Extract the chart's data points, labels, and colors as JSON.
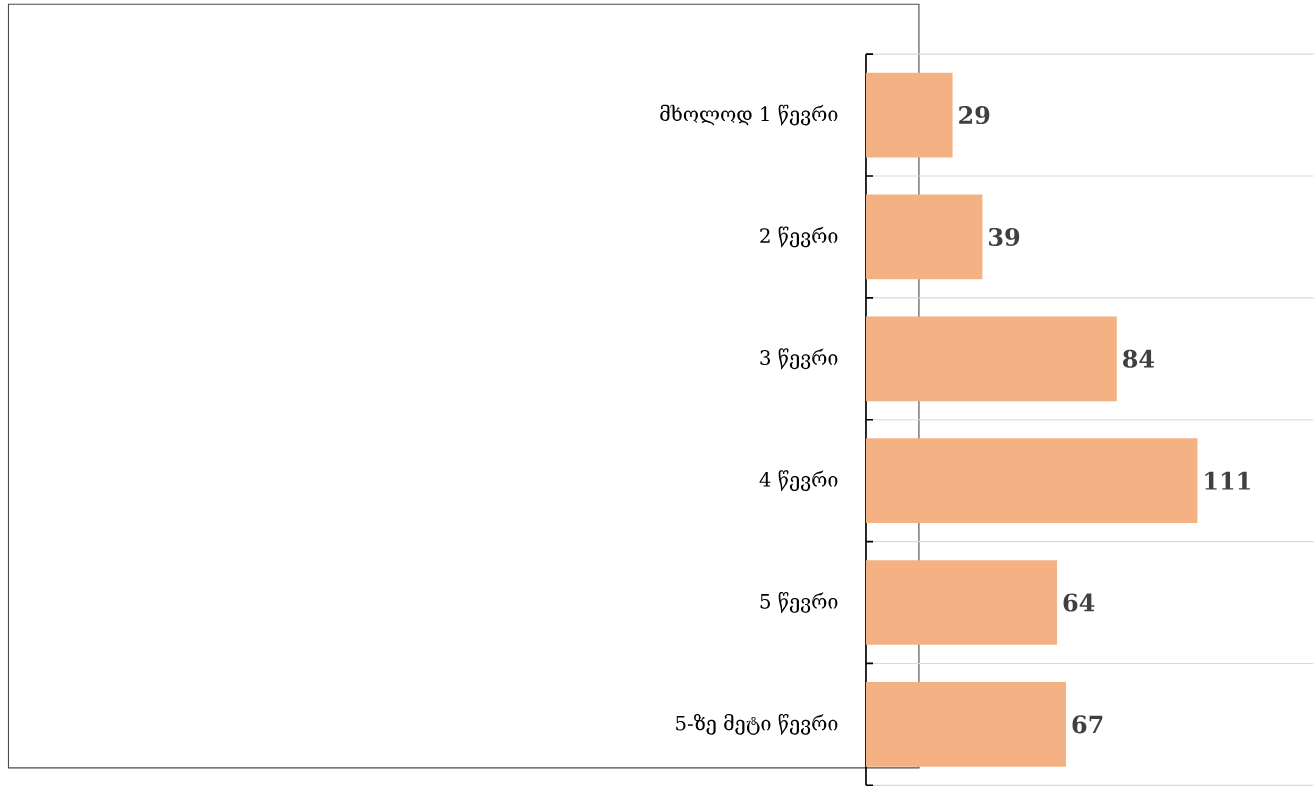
{
  "chart_data": {
    "type": "bar",
    "orientation": "horizontal",
    "categories": [
      "მხოლოდ 1 წევრი",
      "2 წევრი",
      "3 წევრი",
      "4 წევრი",
      "5 წევრი",
      "5-ზე მეტი წევრი"
    ],
    "values": [
      29,
      39,
      84,
      111,
      64,
      67
    ],
    "color": "#f4b183",
    "data_labels": true,
    "grid": "y"
  }
}
